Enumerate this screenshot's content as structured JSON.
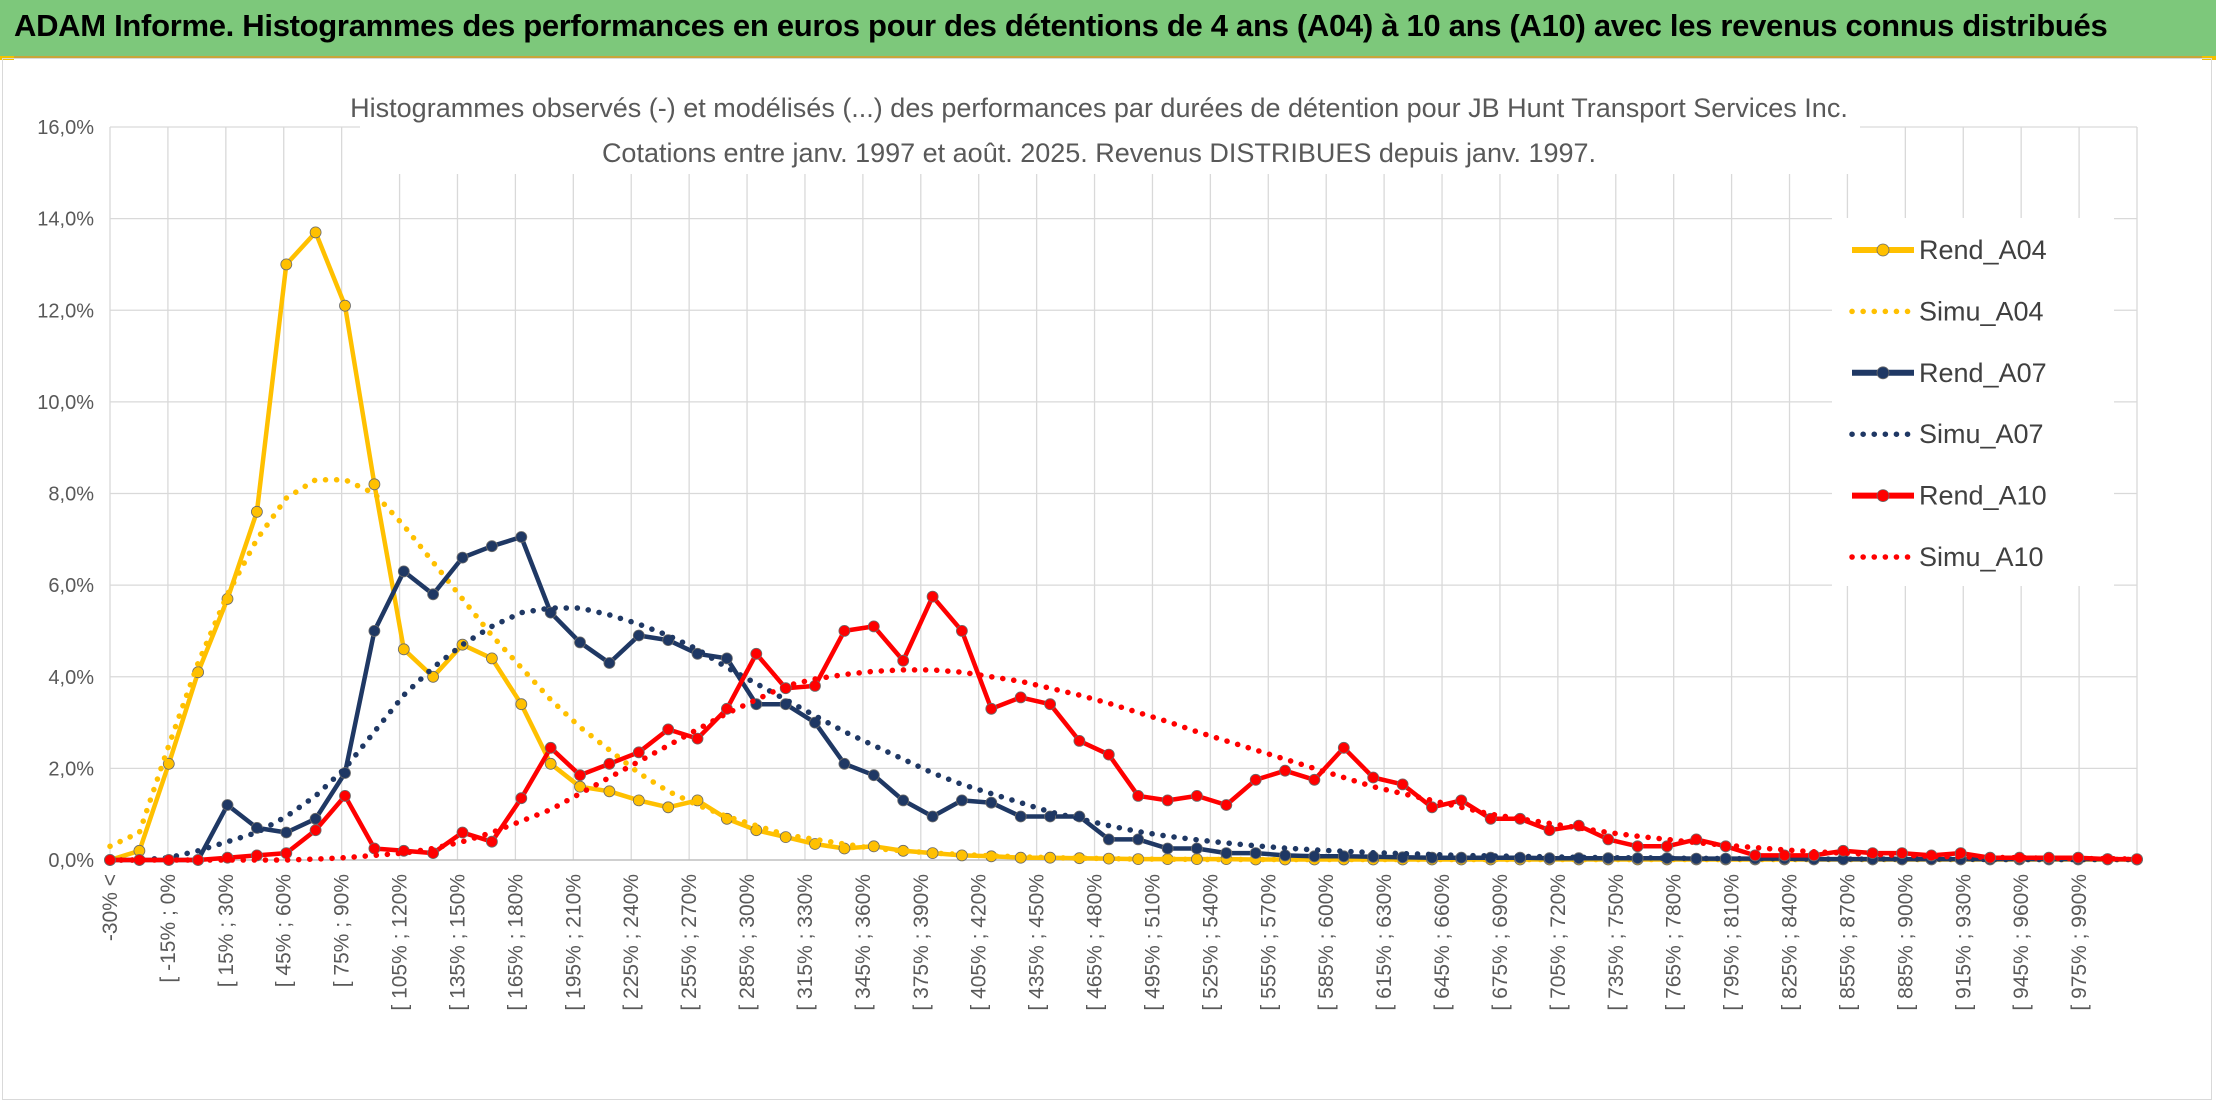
{
  "header": {
    "title": "ADAM Informe. Histogrammes des performances en euros pour des détentions de 4 ans (A04) à 10 ans (A10) avec les revenus connus distribués"
  },
  "chart_data": {
    "type": "line",
    "title": "Histogrammes observés (-) et modélisés (...) des performances par durées de détention pour JB Hunt Transport Services Inc.",
    "subtitle": "Cotations entre janv. 1997 et août. 2025. Revenus DISTRIBUES depuis janv. 1997.",
    "xlabel": "",
    "ylabel": "",
    "ylim": [
      0,
      16
    ],
    "y_ticks": [
      "0,0%",
      "2,0%",
      "4,0%",
      "6,0%",
      "8,0%",
      "10,0%",
      "12,0%",
      "14,0%",
      "16,0%"
    ],
    "grid": true,
    "legend_position": "right",
    "x_tick_labels": [
      "-30% <",
      "[ -15% ; 0%",
      "[ 15% ; 30%",
      "[ 45% ; 60%",
      "[ 75% ; 90%",
      "[ 105% ; 120%",
      "[ 135% ; 150%",
      "[ 165% ; 180%",
      "[ 195% ; 210%",
      "[ 225% ; 240%",
      "[ 255% ; 270%",
      "[ 285% ; 300%",
      "[ 315% ; 330%",
      "[ 345% ; 360%",
      "[ 375% ; 390%",
      "[ 405% ; 420%",
      "[ 435% ; 450%",
      "[ 465% ; 480%",
      "[ 495% ; 510%",
      "[ 525% ; 540%",
      "[ 555% ; 570%",
      "[ 585% ; 600%",
      "[ 615% ; 630%",
      "[ 645% ; 660%",
      "[ 675% ; 690%",
      "[ 705% ; 720%",
      "[ 735% ; 750%",
      "[ 765% ; 780%",
      "[ 795% ; 810%",
      "[ 825% ; 840%",
      "[ 855% ; 870%",
      "[ 885% ; 900%",
      "[ 915% ; 930%",
      "[ 945% ; 960%",
      "[ 975% ; 990%"
    ],
    "series": [
      {
        "name": "Rend_A04",
        "style": "solid",
        "color": "#ffc000",
        "values": [
          0,
          0.2,
          2.1,
          4.1,
          5.7,
          7.6,
          13.0,
          13.7,
          12.1,
          8.2,
          4.6,
          4.0,
          4.7,
          4.4,
          3.4,
          2.1,
          1.6,
          1.5,
          1.3,
          1.15,
          1.3,
          0.9,
          0.65,
          0.5,
          0.35,
          0.25,
          0.3,
          0.2,
          0.15,
          0.1,
          0.08,
          0.05,
          0.05,
          0.04,
          0.03,
          0.02,
          0.02,
          0.02,
          0.02,
          0.01,
          0.01,
          0.01,
          0.01,
          0.01,
          0.01,
          0.01,
          0.01,
          0.01,
          0.01,
          0.01,
          0.01,
          0.01,
          0.01,
          0.01,
          0.01,
          0.01,
          0.01,
          0.01,
          0.01,
          0.01,
          0.01,
          0.01,
          0.01,
          0.01,
          0.01,
          0.01,
          0.01,
          0.01,
          0.01,
          0.01
        ]
      },
      {
        "name": "Simu_A04",
        "style": "dotted",
        "color": "#ffc000",
        "values": [
          0.3,
          0.6,
          2.5,
          4.3,
          5.8,
          7.0,
          7.9,
          8.3,
          8.3,
          8.0,
          7.3,
          6.5,
          5.7,
          4.9,
          4.2,
          3.5,
          2.9,
          2.4,
          1.9,
          1.5,
          1.2,
          0.95,
          0.75,
          0.55,
          0.45,
          0.35,
          0.25,
          0.2,
          0.15,
          0.12,
          0.09,
          0.07,
          0.05,
          0.04,
          0.03,
          0.02,
          0.02,
          0.01,
          0.01,
          0.01,
          0.01,
          0.01,
          0.01,
          0.01,
          0.01,
          0.01,
          0.01,
          0.01,
          0.01,
          0.01,
          0.01,
          0.01,
          0.01,
          0.01,
          0.01,
          0.01,
          0.01,
          0.01,
          0.01,
          0.01,
          0.01,
          0.01,
          0.01,
          0.01,
          0.01,
          0.01,
          0.01,
          0.01,
          0.01,
          0.01
        ]
      },
      {
        "name": "Rend_A07",
        "style": "solid",
        "color": "#1f3864",
        "values": [
          0,
          0,
          0,
          0,
          1.2,
          0.7,
          0.6,
          0.9,
          1.9,
          5.0,
          6.3,
          5.8,
          6.6,
          6.85,
          7.05,
          5.4,
          4.75,
          4.3,
          4.9,
          4.8,
          4.5,
          4.4,
          3.4,
          3.4,
          3.0,
          2.1,
          1.85,
          1.3,
          0.95,
          1.3,
          1.25,
          0.95,
          0.95,
          0.95,
          0.45,
          0.45,
          0.25,
          0.25,
          0.15,
          0.15,
          0.1,
          0.08,
          0.08,
          0.07,
          0.06,
          0.05,
          0.05,
          0.05,
          0.05,
          0.04,
          0.04,
          0.04,
          0.04,
          0.04,
          0.03,
          0.03,
          0.03,
          0.03,
          0.02,
          0.02,
          0.02,
          0.02,
          0.02,
          0.02,
          0.02,
          0.02,
          0.02,
          0.02,
          0.02,
          0.01
        ]
      },
      {
        "name": "Simu_A07",
        "style": "dotted",
        "color": "#1f3864",
        "values": [
          0,
          0,
          0.05,
          0.2,
          0.4,
          0.6,
          0.95,
          1.4,
          2.0,
          2.8,
          3.6,
          4.2,
          4.7,
          5.1,
          5.4,
          5.5,
          5.5,
          5.35,
          5.15,
          4.9,
          4.6,
          4.2,
          3.85,
          3.5,
          3.15,
          2.8,
          2.5,
          2.2,
          1.9,
          1.65,
          1.45,
          1.25,
          1.05,
          0.9,
          0.75,
          0.62,
          0.52,
          0.44,
          0.37,
          0.31,
          0.26,
          0.22,
          0.19,
          0.16,
          0.14,
          0.12,
          0.1,
          0.09,
          0.08,
          0.07,
          0.06,
          0.05,
          0.05,
          0.04,
          0.04,
          0.03,
          0.03,
          0.03,
          0.02,
          0.02,
          0.02,
          0.02,
          0.02,
          0.02,
          0.01,
          0.01,
          0.01,
          0.01,
          0.01,
          0.01
        ]
      },
      {
        "name": "Rend_A10",
        "style": "solid",
        "color": "#ff0000",
        "values": [
          0,
          0,
          0,
          0,
          0.05,
          0.1,
          0.15,
          0.65,
          1.4,
          0.25,
          0.2,
          0.15,
          0.6,
          0.4,
          1.35,
          2.45,
          1.85,
          2.1,
          2.35,
          2.85,
          2.65,
          3.3,
          4.5,
          3.75,
          3.8,
          5.0,
          5.1,
          4.35,
          5.75,
          5.0,
          3.3,
          3.55,
          3.4,
          2.6,
          2.3,
          1.4,
          1.3,
          1.4,
          1.2,
          1.75,
          1.95,
          1.75,
          2.45,
          1.8,
          1.65,
          1.15,
          1.3,
          0.9,
          0.9,
          0.65,
          0.75,
          0.45,
          0.3,
          0.3,
          0.45,
          0.3,
          0.1,
          0.1,
          0.1,
          0.2,
          0.15,
          0.15,
          0.1,
          0.15,
          0.05,
          0.05,
          0.05,
          0.05,
          0.02,
          0.02
        ]
      },
      {
        "name": "Simu_A10",
        "style": "dotted",
        "color": "#ff0000",
        "values": [
          0,
          0,
          0,
          0,
          0,
          0,
          0,
          0.02,
          0.05,
          0.1,
          0.15,
          0.25,
          0.4,
          0.6,
          0.85,
          1.1,
          1.45,
          1.8,
          2.15,
          2.5,
          2.85,
          3.2,
          3.5,
          3.8,
          3.95,
          4.05,
          4.12,
          4.15,
          4.15,
          4.1,
          4.0,
          3.9,
          3.75,
          3.6,
          3.42,
          3.22,
          3.02,
          2.8,
          2.6,
          2.4,
          2.2,
          2.0,
          1.8,
          1.6,
          1.45,
          1.3,
          1.15,
          1.0,
          0.9,
          0.8,
          0.7,
          0.6,
          0.52,
          0.45,
          0.38,
          0.32,
          0.27,
          0.22,
          0.18,
          0.15,
          0.12,
          0.1,
          0.08,
          0.07,
          0.06,
          0.05,
          0.04,
          0.03,
          0.03,
          0.02
        ]
      }
    ]
  }
}
